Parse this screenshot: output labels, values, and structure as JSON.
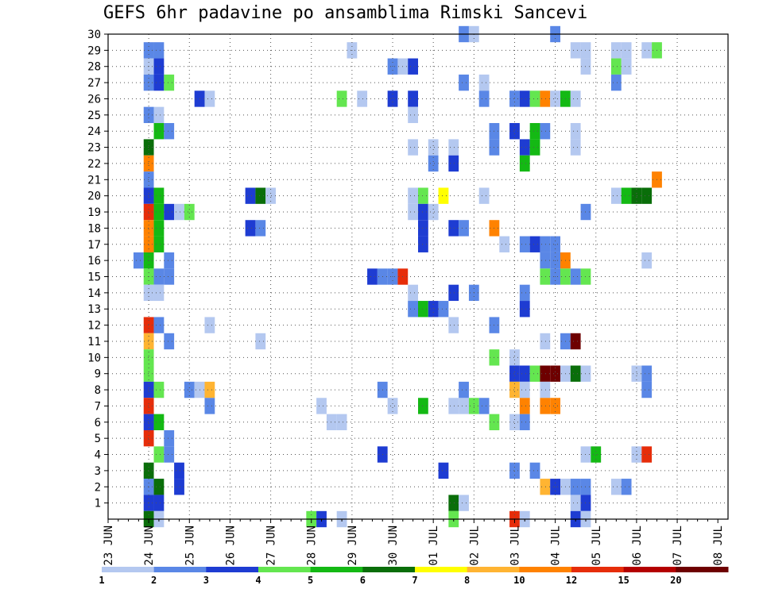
{
  "chart_data": {
    "type": "heatmap",
    "title": "GEFS 6hr padavine po ansamblima Rimski Sancevi",
    "x_tick_labels": [
      "23 JUN",
      "24 JUN",
      "25 JUN",
      "26 JUN",
      "27 JUN",
      "28 JUN",
      "29 JUN",
      "30 JUN",
      "01 JUL",
      "02 JUL",
      "03 JUL",
      "04 JUL",
      "05 JUL",
      "06 JUL",
      "07 JUL",
      "08 JUL"
    ],
    "y_tick_labels": [
      "1",
      "2",
      "3",
      "4",
      "5",
      "6",
      "7",
      "8",
      "9",
      "10",
      "11",
      "12",
      "13",
      "14",
      "15",
      "16",
      "17",
      "18",
      "19",
      "20",
      "21",
      "22",
      "23",
      "24",
      "25",
      "26",
      "27",
      "28",
      "29",
      "30"
    ],
    "x_unit": "6-hour steps from 23 JUN 00Z (4 steps per day)",
    "y_unit": "ensemble member",
    "xlim": [
      0,
      61
    ],
    "ylim": [
      0,
      30
    ],
    "grid": true,
    "colorbar": {
      "orientation": "horizontal",
      "position": "bottom",
      "labels": [
        "1",
        "2",
        "3",
        "4",
        "5",
        "6",
        "7",
        "8",
        "10",
        "12",
        "15",
        "20"
      ],
      "colors": [
        "#b4c8f0",
        "#5a87e6",
        "#1e3cd2",
        "#64e650",
        "#14b914",
        "#0a6e0a",
        "#ffff00",
        "#ffb432",
        "#ff8200",
        "#e62d0a",
        "#b40000",
        "#6e0000"
      ]
    },
    "cells_note": "each cell is [x_step, member, precip_mm]",
    "cells": [
      [
        4,
        29,
        2
      ],
      [
        5,
        29,
        2
      ],
      [
        4,
        28,
        1
      ],
      [
        5,
        28,
        3
      ],
      [
        4,
        27,
        2
      ],
      [
        5,
        27,
        3
      ],
      [
        6,
        27,
        4
      ],
      [
        4,
        25,
        2
      ],
      [
        5,
        25,
        1
      ],
      [
        5,
        24,
        5
      ],
      [
        6,
        24,
        2
      ],
      [
        4,
        23,
        6
      ],
      [
        4,
        22,
        10
      ],
      [
        4,
        21,
        2
      ],
      [
        4,
        20,
        3
      ],
      [
        5,
        20,
        5
      ],
      [
        4,
        19,
        12
      ],
      [
        5,
        19,
        5
      ],
      [
        6,
        19,
        3
      ],
      [
        7,
        19,
        1
      ],
      [
        8,
        19,
        4
      ],
      [
        4,
        18,
        10
      ],
      [
        5,
        18,
        5
      ],
      [
        4,
        17,
        10
      ],
      [
        5,
        17,
        5
      ],
      [
        3,
        16,
        2
      ],
      [
        4,
        16,
        5
      ],
      [
        6,
        16,
        2
      ],
      [
        4,
        15,
        4
      ],
      [
        5,
        15,
        2
      ],
      [
        6,
        15,
        2
      ],
      [
        4,
        14,
        1
      ],
      [
        5,
        14,
        1
      ],
      [
        4,
        12,
        12
      ],
      [
        5,
        12,
        2
      ],
      [
        4,
        11,
        8
      ],
      [
        6,
        11,
        2
      ],
      [
        4,
        10,
        4
      ],
      [
        4,
        9,
        4
      ],
      [
        4,
        8,
        3
      ],
      [
        5,
        8,
        4
      ],
      [
        4,
        7,
        12
      ],
      [
        4,
        6,
        3
      ],
      [
        5,
        6,
        5
      ],
      [
        4,
        5,
        12
      ],
      [
        6,
        5,
        2
      ],
      [
        5,
        4,
        4
      ],
      [
        6,
        4,
        2
      ],
      [
        4,
        3,
        6
      ],
      [
        7,
        3,
        3
      ],
      [
        4,
        2,
        2
      ],
      [
        5,
        2,
        6
      ],
      [
        7,
        2,
        3
      ],
      [
        4,
        1,
        3
      ],
      [
        5,
        1,
        3
      ],
      [
        4,
        0,
        6
      ],
      [
        5,
        0,
        1
      ],
      [
        9,
        26,
        3
      ],
      [
        10,
        26,
        1
      ],
      [
        8,
        8,
        2
      ],
      [
        9,
        8,
        1
      ],
      [
        10,
        8,
        8
      ],
      [
        10,
        7,
        2
      ],
      [
        10,
        12,
        1
      ],
      [
        14,
        20,
        3
      ],
      [
        15,
        20,
        6
      ],
      [
        16,
        20,
        1
      ],
      [
        14,
        18,
        3
      ],
      [
        15,
        18,
        2
      ],
      [
        15,
        11,
        1
      ],
      [
        20,
        0,
        4
      ],
      [
        21,
        0,
        3
      ],
      [
        23,
        0,
        1
      ],
      [
        21,
        7,
        1
      ],
      [
        22,
        6,
        1
      ],
      [
        23,
        6,
        1
      ],
      [
        24,
        29,
        1
      ],
      [
        23,
        26,
        4
      ],
      [
        25,
        26,
        1
      ],
      [
        26,
        15,
        3
      ],
      [
        27,
        15,
        2
      ],
      [
        28,
        15,
        2
      ],
      [
        29,
        15,
        12
      ],
      [
        27,
        8,
        2
      ],
      [
        27,
        4,
        3
      ],
      [
        28,
        28,
        2
      ],
      [
        29,
        28,
        1
      ],
      [
        30,
        28,
        3
      ],
      [
        28,
        26,
        3
      ],
      [
        30,
        26,
        3
      ],
      [
        28,
        7,
        1
      ],
      [
        30,
        25,
        1
      ],
      [
        30,
        23,
        1
      ],
      [
        32,
        23,
        1
      ],
      [
        34,
        23,
        1
      ],
      [
        32,
        22,
        2
      ],
      [
        34,
        22,
        3
      ],
      [
        30,
        20,
        1
      ],
      [
        31,
        20,
        4
      ],
      [
        33,
        20,
        7
      ],
      [
        30,
        19,
        1
      ],
      [
        31,
        19,
        3
      ],
      [
        32,
        19,
        1
      ],
      [
        31,
        18,
        3
      ],
      [
        34,
        18,
        3
      ],
      [
        35,
        18,
        2
      ],
      [
        31,
        17,
        3
      ],
      [
        30,
        14,
        1
      ],
      [
        34,
        14,
        3
      ],
      [
        36,
        14,
        2
      ],
      [
        30,
        13,
        2
      ],
      [
        31,
        13,
        5
      ],
      [
        32,
        13,
        3
      ],
      [
        33,
        13,
        2
      ],
      [
        34,
        12,
        1
      ],
      [
        31,
        7,
        5
      ],
      [
        34,
        7,
        1
      ],
      [
        35,
        7,
        1
      ],
      [
        36,
        7,
        4
      ],
      [
        37,
        7,
        2
      ],
      [
        35,
        8,
        2
      ],
      [
        33,
        3,
        3
      ],
      [
        34,
        1,
        6
      ],
      [
        35,
        1,
        1
      ],
      [
        34,
        0,
        4
      ],
      [
        35,
        30,
        2
      ],
      [
        36,
        30,
        1
      ],
      [
        35,
        27,
        2
      ],
      [
        37,
        27,
        1
      ],
      [
        37,
        26,
        2
      ],
      [
        37,
        20,
        1
      ],
      [
        38,
        24,
        2
      ],
      [
        38,
        23,
        2
      ],
      [
        38,
        18,
        10
      ],
      [
        39,
        17,
        1
      ],
      [
        38,
        12,
        2
      ],
      [
        38,
        10,
        4
      ],
      [
        38,
        6,
        4
      ],
      [
        40,
        26,
        2
      ],
      [
        41,
        26,
        3
      ],
      [
        42,
        26,
        4
      ],
      [
        43,
        26,
        10
      ],
      [
        40,
        24,
        3
      ],
      [
        42,
        24,
        5
      ],
      [
        43,
        24,
        2
      ],
      [
        41,
        23,
        3
      ],
      [
        42,
        23,
        5
      ],
      [
        41,
        22,
        5
      ],
      [
        41,
        17,
        2
      ],
      [
        42,
        17,
        3
      ],
      [
        43,
        17,
        2
      ],
      [
        44,
        17,
        2
      ],
      [
        43,
        16,
        2
      ],
      [
        41,
        14,
        2
      ],
      [
        41,
        13,
        3
      ],
      [
        40,
        10,
        1
      ],
      [
        40,
        9,
        3
      ],
      [
        41,
        9,
        3
      ],
      [
        42,
        9,
        4
      ],
      [
        43,
        9,
        20
      ],
      [
        44,
        9,
        20
      ],
      [
        40,
        8,
        8
      ],
      [
        41,
        8,
        1
      ],
      [
        43,
        8,
        1
      ],
      [
        41,
        7,
        10
      ],
      [
        43,
        7,
        10
      ],
      [
        44,
        7,
        10
      ],
      [
        40,
        6,
        1
      ],
      [
        41,
        6,
        2
      ],
      [
        40,
        3,
        2
      ],
      [
        42,
        3,
        2
      ],
      [
        43,
        2,
        8
      ],
      [
        44,
        2,
        3
      ],
      [
        45,
        2,
        1
      ],
      [
        46,
        2,
        2
      ],
      [
        47,
        2,
        2
      ],
      [
        40,
        0,
        12
      ],
      [
        41,
        0,
        1
      ],
      [
        44,
        30,
        2
      ],
      [
        44,
        26,
        1
      ],
      [
        45,
        26,
        5
      ],
      [
        46,
        26,
        1
      ],
      [
        46,
        24,
        1
      ],
      [
        46,
        23,
        1
      ],
      [
        47,
        19,
        2
      ],
      [
        45,
        16,
        10
      ],
      [
        44,
        16,
        2
      ],
      [
        43,
        15,
        4
      ],
      [
        44,
        15,
        2
      ],
      [
        45,
        15,
        4
      ],
      [
        46,
        15,
        2
      ],
      [
        47,
        15,
        4
      ],
      [
        43,
        11,
        1
      ],
      [
        45,
        11,
        2
      ],
      [
        46,
        11,
        21
      ],
      [
        45,
        9,
        1
      ],
      [
        46,
        9,
        6
      ],
      [
        47,
        9,
        1
      ],
      [
        46,
        1,
        1
      ],
      [
        47,
        1,
        3
      ],
      [
        46,
        0,
        3
      ],
      [
        47,
        0,
        1
      ],
      [
        47,
        4,
        1
      ],
      [
        48,
        4,
        5
      ],
      [
        46,
        29,
        1
      ],
      [
        47,
        29,
        1
      ],
      [
        47,
        28,
        1
      ],
      [
        50,
        29,
        1
      ],
      [
        51,
        29,
        1
      ],
      [
        53,
        29,
        1
      ],
      [
        54,
        29,
        4
      ],
      [
        50,
        28,
        4
      ],
      [
        51,
        28,
        1
      ],
      [
        50,
        27,
        2
      ],
      [
        50,
        20,
        1
      ],
      [
        51,
        20,
        5
      ],
      [
        52,
        20,
        6
      ],
      [
        53,
        20,
        6
      ],
      [
        54,
        21,
        10
      ],
      [
        53,
        16,
        1
      ],
      [
        50,
        2,
        1
      ],
      [
        51,
        2,
        2
      ],
      [
        52,
        4,
        1
      ],
      [
        53,
        4,
        13
      ],
      [
        52,
        9,
        1
      ],
      [
        53,
        9,
        2
      ],
      [
        53,
        8,
        2
      ]
    ]
  }
}
